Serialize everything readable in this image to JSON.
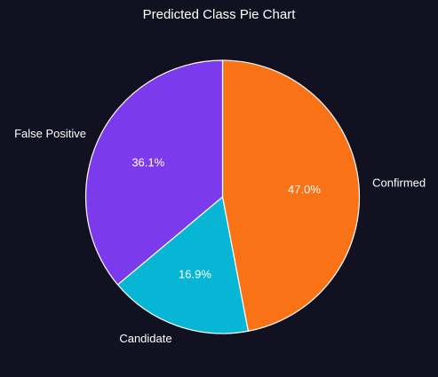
{
  "chart_data": {
    "type": "pie",
    "title": "Predicted Class Pie Chart",
    "slices": [
      {
        "label": "Confirmed",
        "percent_label": "47.0%",
        "value": 47.0,
        "color": "#f97316"
      },
      {
        "label": "Candidate",
        "percent_label": "16.9%",
        "value": 16.9,
        "color": "#06b6d4"
      },
      {
        "label": "False Positive",
        "percent_label": "36.1%",
        "value": 36.1,
        "color": "#7c3aed"
      }
    ],
    "start_angle_deg": 90,
    "direction": "clockwise",
    "edge_color": "#ffffff",
    "background": "#111122"
  }
}
